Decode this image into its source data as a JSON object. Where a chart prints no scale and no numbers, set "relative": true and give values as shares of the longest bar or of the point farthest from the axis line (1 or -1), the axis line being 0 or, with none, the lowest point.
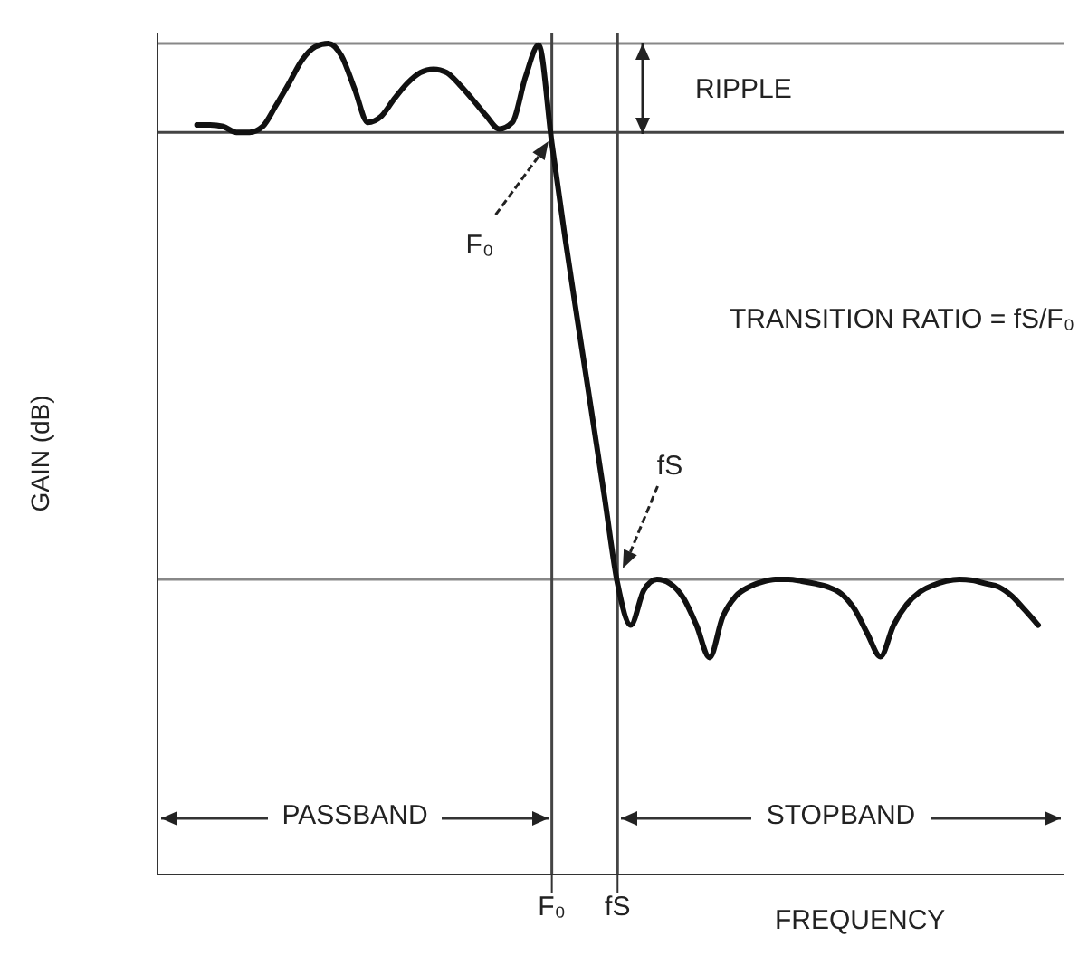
{
  "chart_data": {
    "type": "line",
    "relative": true,
    "xlabel": "FREQUENCY",
    "ylabel": "GAIN (dB)",
    "categories": [
      null,
      null,
      null,
      null,
      null,
      null,
      null,
      null,
      null,
      null,
      null,
      null,
      null,
      null,
      null,
      null,
      null,
      null,
      null,
      null,
      null,
      null,
      null,
      null,
      null,
      null,
      null,
      null,
      null,
      null,
      "F₀",
      null,
      null,
      null,
      null,
      "fS",
      null,
      null,
      null,
      null,
      null,
      null,
      null,
      null,
      null,
      null,
      null,
      null,
      null,
      null,
      null,
      null,
      null,
      null,
      null,
      null,
      null,
      null,
      null,
      null,
      null,
      null,
      null,
      null,
      null,
      null,
      null,
      null,
      null,
      null
    ],
    "tick_labels": "x",
    "marker": "none",
    "line_style": "solid",
    "series": [
      {
        "color": "#111111",
        "values": [
          null,
          null,
          null,
          0.902,
          0.902,
          0.9,
          0.893,
          0.893,
          0.9,
          0.925,
          0.952,
          0.98,
          0.996,
          1.0,
          0.985,
          0.945,
          0.905,
          0.912,
          0.933,
          0.952,
          0.965,
          0.969,
          0.965,
          0.95,
          0.932,
          0.913,
          0.897,
          0.905,
          0.96,
          0.998,
          0.88,
          0.767,
          0.662,
          0.559,
          0.455,
          0.35,
          0.3,
          0.342,
          0.355,
          0.35,
          0.333,
          0.3,
          0.261,
          0.31,
          0.335,
          0.346,
          0.352,
          0.355,
          0.355,
          0.353,
          0.35,
          0.346,
          0.338,
          0.32,
          0.29,
          0.262,
          0.3,
          0.325,
          0.34,
          0.348,
          0.353,
          0.355,
          0.354,
          0.35,
          0.346,
          0.335,
          0.318,
          0.3,
          null,
          null
        ]
      }
    ],
    "ref_lines": [
      {
        "axis": "y",
        "value": 1,
        "color": "#888888"
      },
      {
        "axis": "y",
        "value": 0.893,
        "color": "#444444"
      },
      {
        "axis": "y",
        "value": 0.355,
        "color": "#888888"
      },
      {
        "axis": "x",
        "value": "F₀",
        "color": "#444444"
      },
      {
        "axis": "x",
        "value": "fS",
        "color": "#444444"
      }
    ],
    "annotations": [
      "RIPPLE",
      "F₀",
      "TRANSITION RATIO = fS/F₀",
      "fS",
      "PASSBAND",
      "STOPBAND"
    ]
  }
}
